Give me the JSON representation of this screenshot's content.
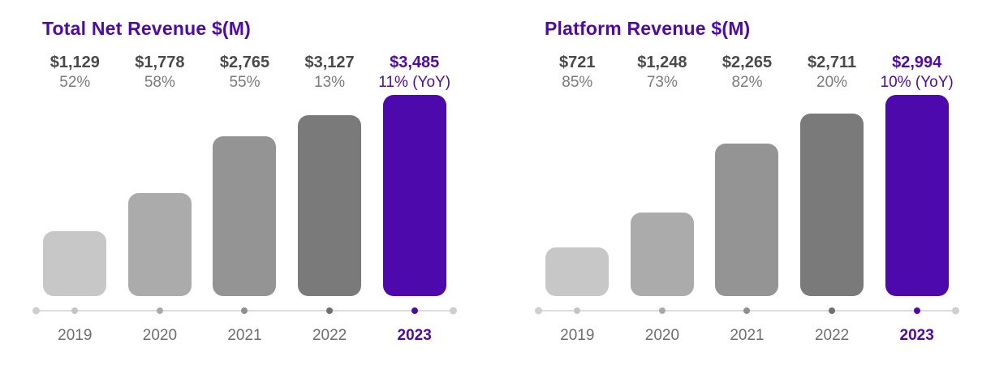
{
  "colors": {
    "highlight_purple": "#4e09ad",
    "bar_palette": [
      "#c7c7c7",
      "#ababab",
      "#949494",
      "#7a7a7a",
      "#4e09ad"
    ],
    "dot_palette": [
      "#c4c4c4",
      "#a9a9a9",
      "#8f8f8f",
      "#6f6f6f",
      "#4e09ad"
    ],
    "axis_line": "#dcdcdc",
    "axis_cap": "#cfcfcf",
    "value_text": "#4a4a4a",
    "pct_text": "#7b7b7b",
    "year_text": "#6e6e6e"
  },
  "chart_data": [
    {
      "type": "bar",
      "title": "Total Net Revenue $(M)",
      "categories": [
        "2019",
        "2020",
        "2021",
        "2022",
        "2023"
      ],
      "series": [
        {
          "name": "Total Net Revenue",
          "values": [
            1129,
            1778,
            2765,
            3127,
            3485
          ]
        }
      ],
      "value_labels": [
        "$1,129",
        "$1,778",
        "$2,765",
        "$3,127",
        "$3,485"
      ],
      "growth_labels": [
        "52%",
        "58%",
        "55%",
        "13%",
        "11% (YoY)"
      ],
      "highlight_index": 4,
      "xlabel": "",
      "ylabel": "",
      "grid": false,
      "legend": false
    },
    {
      "type": "bar",
      "title": "Platform Revenue $(M)",
      "categories": [
        "2019",
        "2020",
        "2021",
        "2022",
        "2023"
      ],
      "series": [
        {
          "name": "Platform Revenue",
          "values": [
            721,
            1248,
            2265,
            2711,
            2994
          ]
        }
      ],
      "value_labels": [
        "$721",
        "$1,248",
        "$2,265",
        "$2,711",
        "$2,994"
      ],
      "growth_labels": [
        "85%",
        "73%",
        "82%",
        "20%",
        "10% (YoY)"
      ],
      "highlight_index": 4,
      "xlabel": "",
      "ylabel": "",
      "grid": false,
      "legend": false
    }
  ]
}
